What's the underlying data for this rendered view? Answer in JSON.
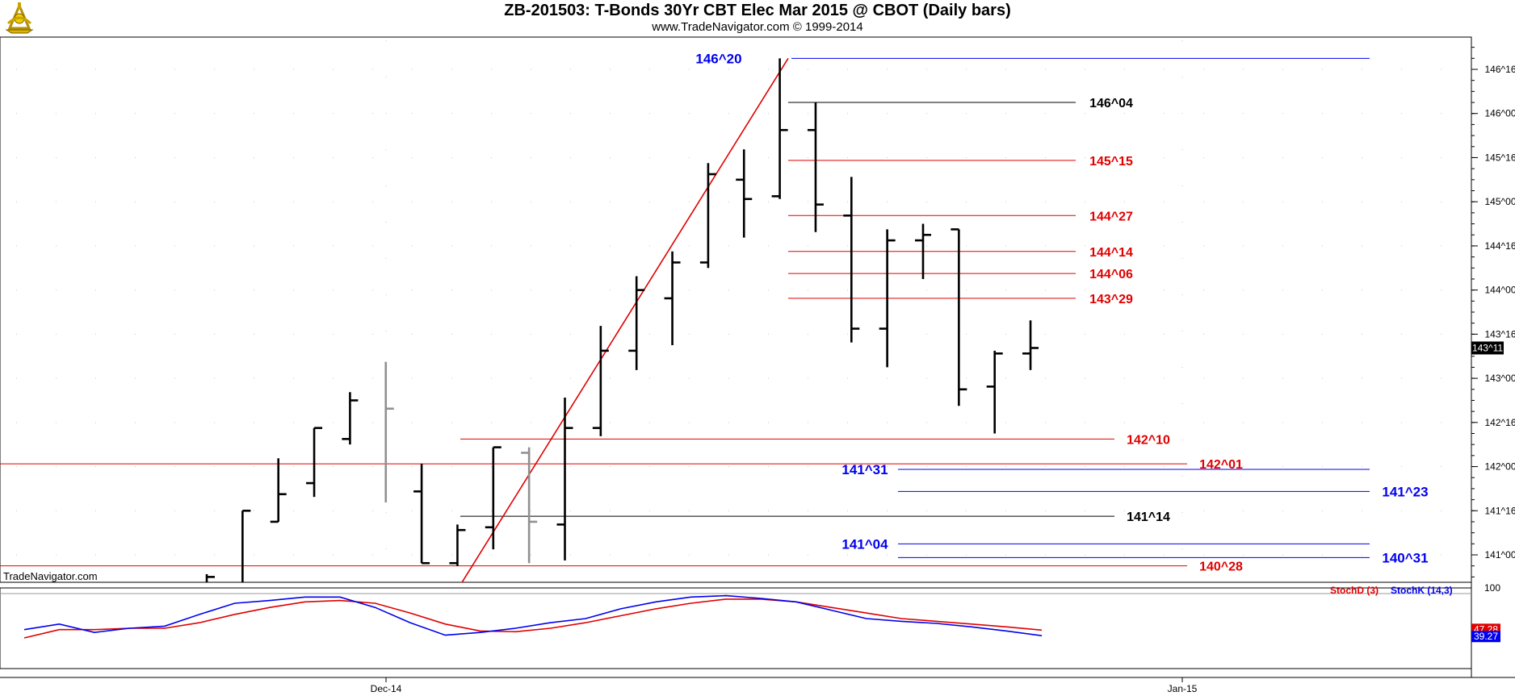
{
  "header": {
    "title": "ZB-201503:  T-Bonds 30Yr CBT Elec Mar 2015 @ CBOT  (Daily bars)",
    "subtitle": "www.TradeNavigator.com © 1999-2014",
    "watermark": "TradeNavigator.com",
    "logo_icon": "tradenavigator-sextant-icon"
  },
  "colors": {
    "bar": "#000000",
    "bar_gray": "#909090",
    "red": "#e00000",
    "blue": "#0000ee",
    "black_line": "#000000",
    "grid": "#c8c8c8"
  },
  "chart_data": [
    {
      "type": "ohlc",
      "title": "ZB-201503:  T-Bonds 30Yr CBT Elec Mar 2015 @ CBOT  (Daily bars)",
      "price_unit": "32nds",
      "ylim": [
        "140^22",
        "146^26"
      ],
      "y_ticks": [
        "146^16",
        "146^00",
        "145^16",
        "145^00",
        "144^16",
        "144^00",
        "143^16",
        "143^00",
        "142^16",
        "142^00",
        "141^16",
        "141^00"
      ],
      "x_ticks": [
        "Dec-14",
        "Jan-15"
      ],
      "last_price_label": "143^11",
      "bars": [
        {
          "high": "140^25",
          "low": "140^22",
          "open": "",
          "close": "140^24"
        },
        {
          "high": "141^16",
          "low": "140^22",
          "open": "",
          "close": "141^16"
        },
        {
          "high": "142^03",
          "low": "141^12",
          "open": "141^12",
          "close": "141^22"
        },
        {
          "high": "142^14",
          "low": "141^21",
          "open": "141^26",
          "close": "142^14"
        },
        {
          "high": "142^27",
          "low": "142^08",
          "open": "142^10",
          "close": "142^24"
        },
        {
          "high": "143^06",
          "low": "141^19",
          "open": "",
          "close": "142^21",
          "gray": true
        },
        {
          "high": "142^01",
          "low": "140^29",
          "open": "141^23",
          "close": "140^29"
        },
        {
          "high": "141^11",
          "low": "140^28",
          "open": "140^29",
          "close": "141^09"
        },
        {
          "high": "142^07",
          "low": "141^02",
          "open": "141^10",
          "close": "142^07"
        },
        {
          "high": "142^07",
          "low": "140^29",
          "open": "142^05",
          "close": "141^12",
          "gray": true
        },
        {
          "high": "142^25",
          "low": "140^30",
          "open": "141^11",
          "close": "142^14"
        },
        {
          "high": "143^19",
          "low": "142^11",
          "open": "142^14",
          "close": "143^10"
        },
        {
          "high": "144^05",
          "low": "143^03",
          "open": "143^10",
          "close": "144^00"
        },
        {
          "high": "144^14",
          "low": "143^12",
          "open": "143^29",
          "close": "144^10"
        },
        {
          "high": "145^14",
          "low": "144^08",
          "open": "144^10",
          "close": "145^10"
        },
        {
          "high": "145^19",
          "low": "144^19",
          "open": "145^08",
          "close": "145^01"
        },
        {
          "high": "146^20",
          "low": "145^01",
          "open": "145^02",
          "close": "145^26"
        },
        {
          "high": "146^04",
          "low": "144^21",
          "open": "145^26",
          "close": "144^31"
        },
        {
          "high": "145^09",
          "low": "143^13",
          "open": "144^27",
          "close": "143^18"
        },
        {
          "high": "144^22",
          "low": "143^04",
          "open": "143^18",
          "close": "144^18"
        },
        {
          "high": "144^24",
          "low": "144^04",
          "open": "144^18",
          "close": "144^20"
        },
        {
          "high": "144^22",
          "low": "142^22",
          "open": "144^22",
          "close": "142^28"
        },
        {
          "high": "143^10",
          "low": "142^12",
          "open": "142^29",
          "close": "143^09"
        },
        {
          "high": "143^21",
          "low": "143^03",
          "open": "143^09",
          "close": "143^11"
        }
      ],
      "trendline": {
        "from": "140^22",
        "to": "146^20",
        "color": "red"
      },
      "levels": [
        {
          "label": "146^20",
          "price": "146^20",
          "color": "blue"
        },
        {
          "label": "146^04",
          "price": "146^04",
          "color": "black"
        },
        {
          "label": "145^15",
          "price": "145^15",
          "color": "red"
        },
        {
          "label": "144^27",
          "price": "144^27",
          "color": "red"
        },
        {
          "label": "144^14",
          "price": "144^14",
          "color": "red"
        },
        {
          "label": "144^06",
          "price": "144^06",
          "color": "red"
        },
        {
          "label": "143^29",
          "price": "143^29",
          "color": "red"
        },
        {
          "label": "142^10",
          "price": "142^10",
          "color": "red"
        },
        {
          "label": "142^01",
          "price": "142^01",
          "color": "red"
        },
        {
          "label": "141^31",
          "price": "141^31",
          "color": "blue"
        },
        {
          "label": "141^23",
          "price": "141^23",
          "color": "blue"
        },
        {
          "label": "141^14",
          "price": "141^14",
          "color": "black"
        },
        {
          "label": "141^04",
          "price": "141^04",
          "color": "blue"
        },
        {
          "label": "140^31",
          "price": "140^31",
          "color": "blue"
        },
        {
          "label": "140^28",
          "price": "140^28",
          "color": "red"
        }
      ]
    },
    {
      "type": "line",
      "legend": [
        "StochD (3)",
        "StochK (14,3)"
      ],
      "ylim": [
        0,
        100
      ],
      "y_ticks": [
        "100"
      ],
      "last_labels": {
        "stochd": "47.28",
        "stochk": "39.27"
      },
      "series": [
        {
          "name": "StochD (3)",
          "color": "red",
          "values": [
            36,
            48,
            48,
            50,
            50,
            58,
            70,
            80,
            88,
            90,
            86,
            72,
            56,
            46,
            45,
            50,
            58,
            68,
            78,
            86,
            92,
            92,
            88,
            80,
            72,
            64,
            60,
            56,
            52,
            47.28
          ]
        },
        {
          "name": "StochK (14,3)",
          "color": "blue",
          "values": [
            48,
            56,
            44,
            50,
            53,
            70,
            86,
            90,
            95,
            95,
            80,
            58,
            40,
            44,
            50,
            58,
            64,
            78,
            88,
            95,
            97,
            93,
            88,
            76,
            64,
            60,
            57,
            52,
            46,
            39.27
          ]
        }
      ]
    }
  ]
}
